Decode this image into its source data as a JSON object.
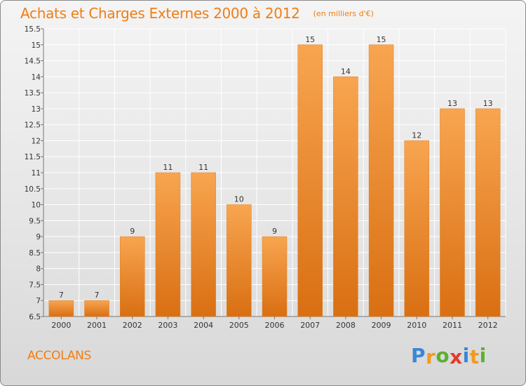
{
  "header": {
    "title": "Achats et Charges Externes 2000 à 2012",
    "units": "(en milliers d'€)"
  },
  "footer": {
    "commune": "ACCOLANS",
    "logo_text": "Proxiti",
    "logo_letters": [
      {
        "ch": "P",
        "color": "#3a86d6"
      },
      {
        "ch": "r",
        "color": "#f39a1d"
      },
      {
        "ch": "o",
        "color": "#5cb030"
      },
      {
        "ch": "x",
        "color": "#e53b2c"
      },
      {
        "ch": "i",
        "color": "#3a86d6"
      },
      {
        "ch": "t",
        "color": "#f39a1d"
      },
      {
        "ch": "i",
        "color": "#5cb030"
      }
    ]
  },
  "chart_data": {
    "type": "bar",
    "title": "Achats et Charges Externes 2000 à 2012",
    "categories": [
      "2000",
      "2001",
      "2002",
      "2003",
      "2004",
      "2005",
      "2006",
      "2007",
      "2008",
      "2009",
      "2010",
      "2011",
      "2012"
    ],
    "values": [
      7,
      7,
      9,
      11,
      11,
      10,
      9,
      15,
      14,
      15,
      12,
      13,
      13
    ],
    "ylim": [
      6.5,
      15.5
    ],
    "yticks": [
      "6.5",
      "7",
      "7.5",
      "8",
      "8.5",
      "9",
      "9.5",
      "10",
      "10.5",
      "11",
      "11.5",
      "12",
      "12.5",
      "13",
      "13.5",
      "14",
      "14.5",
      "15",
      "15.5"
    ],
    "grid": true,
    "bar_color": "#f08a2a",
    "xlabel": "",
    "ylabel": ""
  }
}
